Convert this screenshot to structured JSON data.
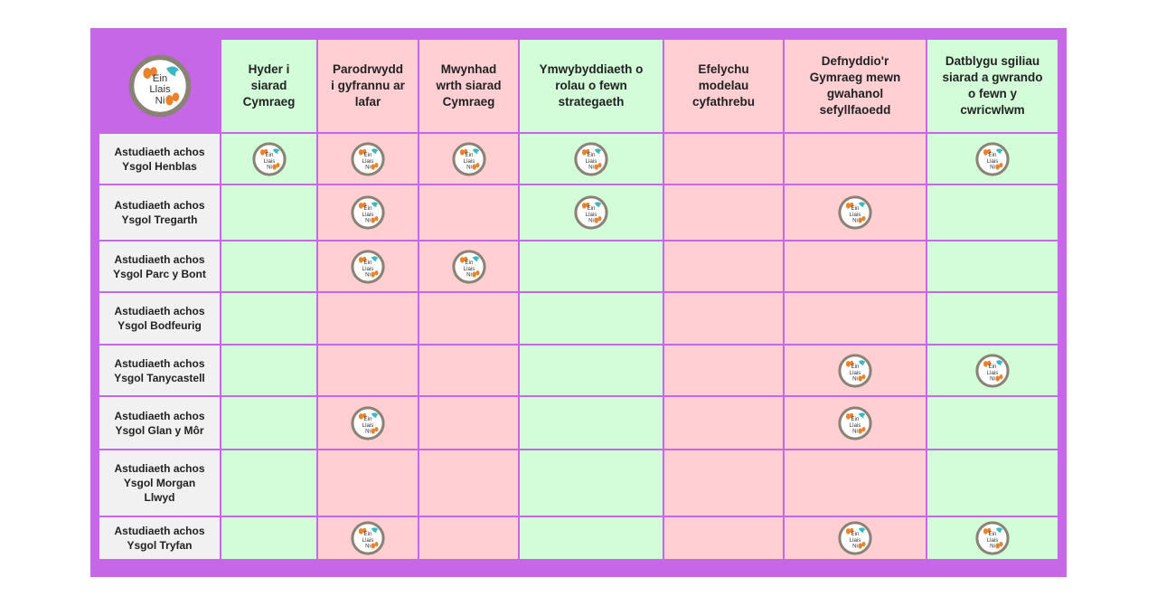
{
  "colors": {
    "border": "#c567e6",
    "green": "#d3fcd8",
    "pink": "#ffcfd4",
    "label_bg": "#f1f1f1",
    "badge_ring": "#8a8275",
    "badge_fill": "#ffffff",
    "badge_orange": "#e8822c",
    "badge_teal": "#3ab8c4"
  },
  "logo": {
    "icon": "ein-llais-ni-logo",
    "line1": "Ein",
    "line2": "Llais",
    "line3": "Ni"
  },
  "columns": [
    {
      "text": "Hyder i\nsiarad\nCymraeg",
      "color": "green"
    },
    {
      "text": "Parodrwydd\ni gyfrannu ar\nlafar",
      "color": "pink"
    },
    {
      "text": "Mwynhad\nwrth siarad\nCymraeg",
      "color": "pink"
    },
    {
      "text": "Ymwybyddiaeth o\nrolau o fewn\nstrategaeth",
      "color": "green"
    },
    {
      "text": "Efelychu\nmodelau\ncyfathrebu",
      "color": "pink"
    },
    {
      "text": "Defnyddio'r\nGymraeg mewn\ngwahanol\nsefyllfaoedd",
      "color": "pink"
    },
    {
      "text": "Datblygu sgiliau\nsiarad a gwrando\no fewn y\ncwricwlwm",
      "color": "green"
    }
  ],
  "rows": [
    {
      "label": "Astudiaeth achos\nYsgol Henblas",
      "marks": [
        true,
        true,
        true,
        true,
        false,
        false,
        true
      ]
    },
    {
      "label": "Astudiaeth achos\nYsgol Tregarth",
      "marks": [
        false,
        true,
        false,
        true,
        false,
        true,
        false
      ]
    },
    {
      "label": "Astudiaeth achos\nYsgol Parc y Bont",
      "marks": [
        false,
        true,
        true,
        false,
        false,
        false,
        false
      ]
    },
    {
      "label": "Astudiaeth achos\nYsgol Bodfeurig",
      "marks": [
        false,
        false,
        false,
        false,
        false,
        false,
        false
      ]
    },
    {
      "label": "Astudiaeth achos\nYsgol Tanycastell",
      "marks": [
        false,
        false,
        false,
        false,
        false,
        true,
        true
      ]
    },
    {
      "label": "Astudiaeth achos\nYsgol Glan y Môr",
      "marks": [
        false,
        true,
        false,
        false,
        false,
        true,
        false
      ]
    },
    {
      "label": "Astudiaeth achos\nYsgol Morgan\nLlwyd",
      "marks": [
        false,
        false,
        false,
        false,
        false,
        false,
        false
      ]
    },
    {
      "label": "Astudiaeth achos\nYsgol Tryfan",
      "marks": [
        false,
        true,
        false,
        false,
        false,
        true,
        true
      ]
    }
  ]
}
